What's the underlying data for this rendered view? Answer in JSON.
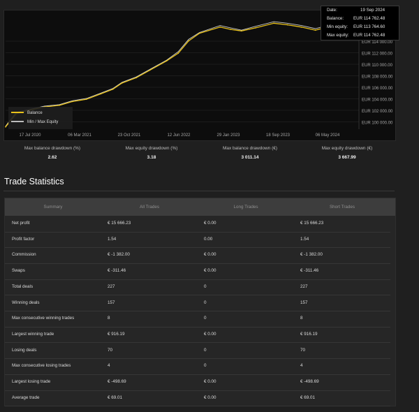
{
  "chart": {
    "x_ticks": [
      "17 Jul 2020",
      "06 Mar 2021",
      "23 Oct 2021",
      "12 Jun 2022",
      "29 Jan 2023",
      "18 Sep 2023",
      "06 May 2024"
    ],
    "y_ticks": [
      "EUR 114 000.00",
      "EUR 112 000.00",
      "EUR 110 000.00",
      "EUR 108 000.00",
      "EUR 106 000.00",
      "EUR 104 000.00",
      "EUR 102 000.00",
      "EUR 100 000.00"
    ],
    "legend": {
      "balance": "Balance",
      "equity": "Min / Max Equity"
    },
    "tooltip": {
      "date_label": "Date:",
      "date": "19 Sep 2024",
      "balance_label": "Balance:",
      "balance": "EUR 114 762.48",
      "min_label": "Min equity:",
      "min": "EUR 113 764.60",
      "max_label": "Max equity:",
      "max": "EUR 114 762.48"
    },
    "colors": {
      "balance": "#e9c21a",
      "equity": "#cfcfcf"
    }
  },
  "chart_data": {
    "type": "line",
    "xlabel": "",
    "ylabel": "",
    "ylim": [
      99400,
      114500
    ],
    "x": [
      "2020-07-17",
      "2020-09-01",
      "2020-11-01",
      "2021-01-01",
      "2021-03-06",
      "2021-05-01",
      "2021-07-01",
      "2021-09-01",
      "2021-10-23",
      "2021-12-01",
      "2022-02-01",
      "2022-04-01",
      "2022-06-12",
      "2022-08-01",
      "2022-09-15",
      "2022-11-01",
      "2023-01-29",
      "2023-03-15",
      "2023-05-01",
      "2023-07-01",
      "2023-09-18",
      "2023-11-15",
      "2024-01-15",
      "2024-03-15",
      "2024-05-06",
      "2024-07-01",
      "2024-09-19"
    ],
    "series": [
      {
        "name": "Balance",
        "values": [
          99700,
          101400,
          101900,
          102300,
          102500,
          103000,
          103300,
          104000,
          104600,
          105400,
          106100,
          107100,
          108300,
          109300,
          110900,
          111900,
          112700,
          112400,
          112200,
          112600,
          113200,
          113000,
          112700,
          112300,
          112700,
          113300,
          114700
        ]
      },
      {
        "name": "Min / Max Equity",
        "values": [
          99800,
          101600,
          102000,
          102400,
          102600,
          103100,
          103400,
          104100,
          104700,
          105500,
          106200,
          107200,
          108400,
          109500,
          111100,
          112000,
          112900,
          112600,
          112300,
          112800,
          113400,
          113200,
          112900,
          112500,
          112900,
          113500,
          114700
        ]
      }
    ]
  },
  "drawdowns": [
    {
      "label": "Max balance drawdown (%)",
      "value": "2.62"
    },
    {
      "label": "Max equity drawdown (%)",
      "value": "3.18"
    },
    {
      "label": "Max balance drawdown (€)",
      "value": "3 011.14"
    },
    {
      "label": "Max equity drawdown (€)",
      "value": "3 667.99"
    }
  ],
  "trade_statistics": {
    "title": "Trade Statistics",
    "headers": [
      "Summary",
      "All Trades",
      "Long Trades",
      "Short Trades"
    ],
    "rows": [
      [
        "Net profit",
        "€ 15 666.23",
        "€ 0.00",
        "€ 15 666.23"
      ],
      [
        "Profit factor",
        "1.54",
        "0.00",
        "1.54"
      ],
      [
        "Commission",
        "€ -1 382.00",
        "€ 0.00",
        "€ -1 382.00"
      ],
      [
        "Swaps",
        "€ -311.46",
        "€ 0.00",
        "€ -311.46"
      ],
      [
        "Total deals",
        "227",
        "0",
        "227"
      ],
      [
        "Winning deals",
        "157",
        "0",
        "157"
      ],
      [
        "Max consecutive winning trades",
        "8",
        "0",
        "8"
      ],
      [
        "Largest winning trade",
        "€ 916.19",
        "€ 0.00",
        "€ 916.19"
      ],
      [
        "Losing deals",
        "70",
        "0",
        "70"
      ],
      [
        "Max consecutive losing trades",
        "4",
        "0",
        "4"
      ],
      [
        "Largest losing trade",
        "€ -498.69",
        "€ 0.00",
        "€ -498.69"
      ],
      [
        "Average trade",
        "€ 69.01",
        "€ 0.00",
        "€ 69.01"
      ]
    ]
  }
}
